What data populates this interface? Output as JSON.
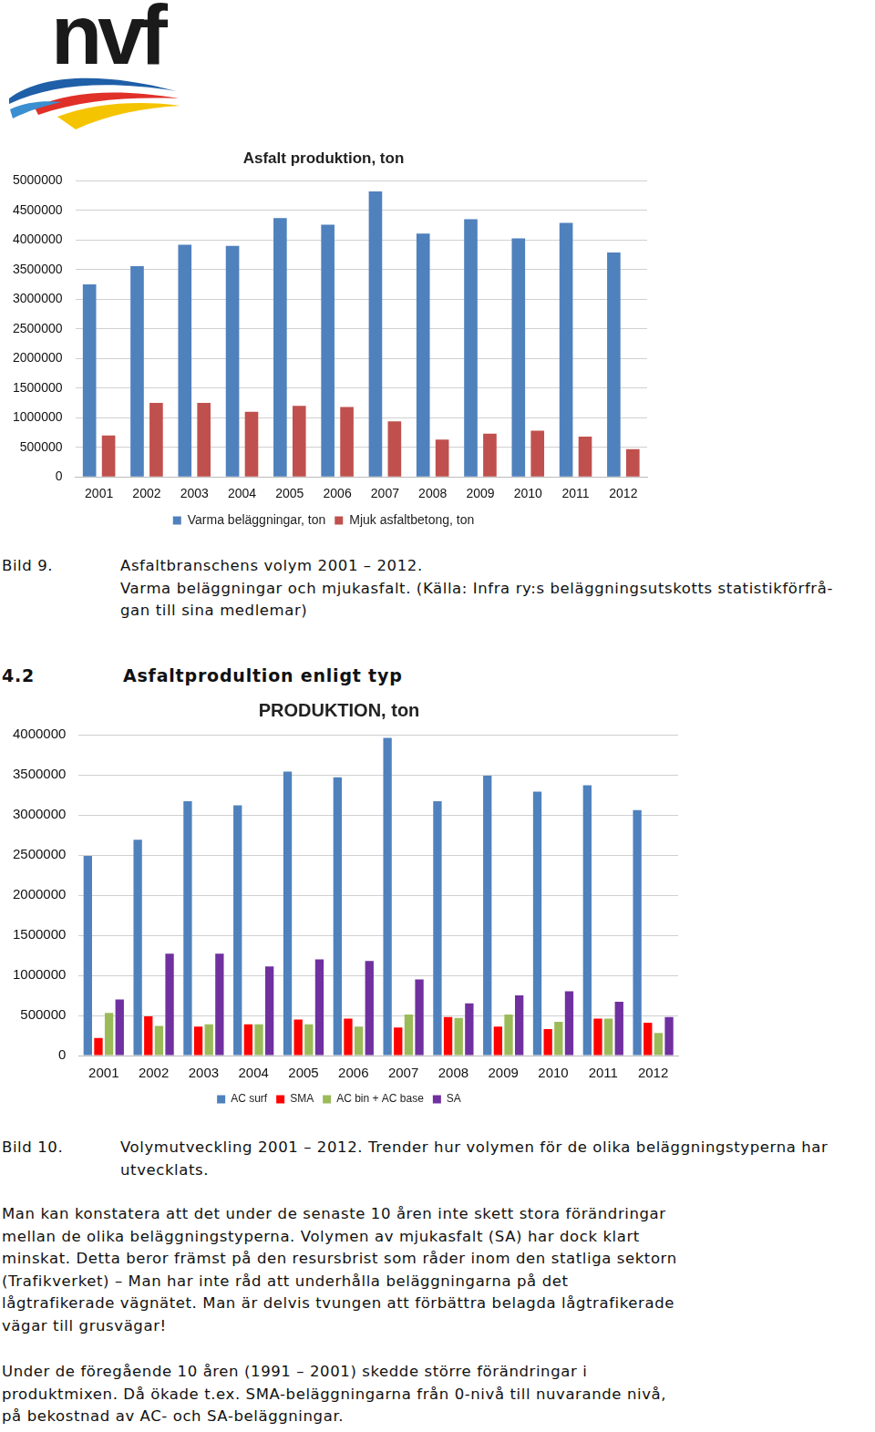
{
  "logo": "nvf",
  "chart_data": [
    {
      "type": "bar",
      "title": "Asfalt produktion, ton",
      "categories": [
        "2001",
        "2002",
        "2003",
        "2004",
        "2005",
        "2006",
        "2007",
        "2008",
        "2009",
        "2010",
        "2011",
        "2012"
      ],
      "series": [
        {
          "name": "Varma beläggningar, ton",
          "color": "#4f81bd",
          "values": [
            3250000,
            3560000,
            3920000,
            3900000,
            4370000,
            4260000,
            4820000,
            4110000,
            4350000,
            4030000,
            4290000,
            3790000
          ]
        },
        {
          "name": "Mjuk asfaltbetong, ton",
          "color": "#c0504d",
          "values": [
            700000,
            1250000,
            1250000,
            1100000,
            1200000,
            1180000,
            940000,
            630000,
            730000,
            780000,
            680000,
            470000
          ]
        }
      ],
      "ylim": [
        0,
        5000000
      ],
      "yticks": [
        0,
        500000,
        1000000,
        1500000,
        2000000,
        2500000,
        3000000,
        3500000,
        4000000,
        4500000,
        5000000
      ],
      "grid": true,
      "legend": "bottom"
    },
    {
      "type": "bar",
      "title": "PRODUKTION, ton",
      "categories": [
        "2001",
        "2002",
        "2003",
        "2004",
        "2005",
        "2006",
        "2007",
        "2008",
        "2009",
        "2010",
        "2011",
        "2012"
      ],
      "series": [
        {
          "name": "AC surf",
          "color": "#4f81bd",
          "values": [
            2490000,
            2690000,
            3170000,
            3120000,
            3540000,
            3470000,
            3960000,
            3170000,
            3490000,
            3290000,
            3370000,
            3060000
          ]
        },
        {
          "name": "SMA",
          "color": "#ff0000",
          "values": [
            220000,
            490000,
            360000,
            390000,
            450000,
            460000,
            350000,
            480000,
            360000,
            330000,
            460000,
            410000
          ]
        },
        {
          "name": "AC bin + AC base",
          "color": "#9bbb59",
          "values": [
            530000,
            370000,
            390000,
            390000,
            390000,
            360000,
            510000,
            470000,
            510000,
            420000,
            460000,
            280000
          ]
        },
        {
          "name": "SA",
          "color": "#7030a0",
          "values": [
            700000,
            1270000,
            1270000,
            1110000,
            1200000,
            1180000,
            950000,
            650000,
            750000,
            800000,
            670000,
            480000
          ]
        }
      ],
      "ylim": [
        0,
        4000000
      ],
      "yticks": [
        0,
        500000,
        1000000,
        1500000,
        2000000,
        2500000,
        3000000,
        3500000,
        4000000
      ],
      "grid": true,
      "legend": "bottom"
    }
  ],
  "captions": [
    {
      "label": "Bild 9.",
      "lines": [
        "Asfaltbranschens volym 2001 – 2012.",
        "Varma beläggningar och mjukasfalt. (Källa: Infra ry:s beläggningsutskotts statistikförfrå-",
        "gan till sina medlemar)"
      ]
    },
    {
      "label": "Bild 10.",
      "lines": [
        "Volymutveckling 2001 – 2012. Trender hur volymen för de olika beläggningstyperna har",
        "utvecklats."
      ]
    }
  ],
  "heading": {
    "number": "4.2",
    "text": "Asfaltprodultion enligt typ"
  },
  "paragraphs": [
    [
      "Man kan konstatera att det under de senaste 10 åren inte skett stora förändringar",
      "mellan de olika beläggningstyperna. Volymen av mjukasfalt (SA) har dock klart",
      "minskat. Detta beror främst på den resursbrist som råder inom den statliga sektorn",
      "(Trafikverket) – Man har inte råd att underhålla beläggningarna på det",
      "lågtrafikerade vägnätet. Man är delvis tvungen att förbättra belagda lågtrafikerade",
      "vägar till grusvägar!"
    ],
    [
      "Under de föregående 10 åren (1991 – 2001) skedde större förändringar i",
      "produktmixen. Då ökade t.ex. SMA-beläggningarna från 0-nivå till nuvarande nivå,",
      "på bekostnad av AC- och SA-beläggningar."
    ]
  ]
}
